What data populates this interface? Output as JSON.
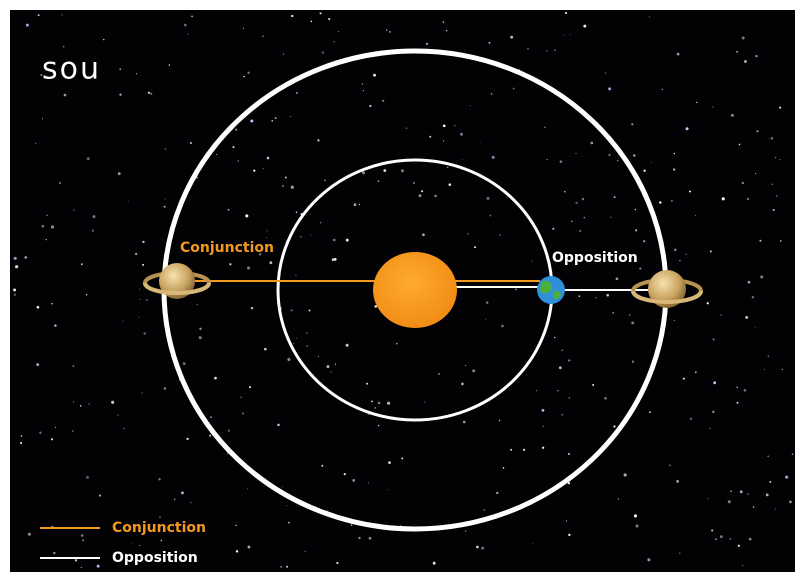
{
  "logo": "sou",
  "labels": {
    "conjunction": "Conjunction",
    "opposition": "Opposition"
  },
  "legend": [
    {
      "name": "Conjunction",
      "color": "#f39a1e"
    },
    {
      "name": "Opposition",
      "color": "#ffffff"
    }
  ]
}
